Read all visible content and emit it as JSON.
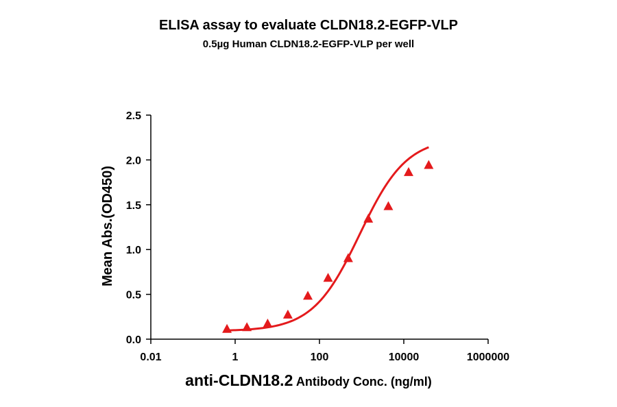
{
  "chart_data": {
    "type": "scatter",
    "title": "ELISA assay to evaluate CLDN18.2-EGFP-VLP",
    "subtitle": "0.5µg Human CLDN18.2-EGFP-VLP per well",
    "xlabel_main": "anti-CLDN18.2",
    "xlabel_rest": "Antibody Conc. (ng/ml)",
    "ylabel": "Mean Abs.(OD450)",
    "x_scale": "log",
    "xlim": [
      0.01,
      1000000
    ],
    "ylim": [
      0,
      2.5
    ],
    "x_ticks": [
      0.01,
      1,
      100,
      10000,
      1000000
    ],
    "x_tick_labels": [
      "0.01",
      "1",
      "100",
      "10000",
      "1000000"
    ],
    "y_ticks": [
      0,
      0.5,
      1,
      1.5,
      2,
      2.5
    ],
    "y_tick_labels": [
      "0.0",
      "0.5",
      "1.0",
      "1.5",
      "2.0",
      "2.5"
    ],
    "grid": false,
    "marker": "triangle",
    "series": [
      {
        "color": "#e41a1c",
        "x": [
          0.64,
          1.9,
          5.9,
          17.8,
          53,
          160,
          480,
          1440,
          4300,
          13000,
          39000
        ],
        "y": [
          0.11,
          0.13,
          0.17,
          0.27,
          0.48,
          0.68,
          0.9,
          1.34,
          1.48,
          1.86,
          1.94
        ]
      }
    ],
    "fit": {
      "type": "4PL",
      "bottom": 0.09,
      "top": 2.25,
      "ec50": 900,
      "hill": 0.78
    }
  }
}
